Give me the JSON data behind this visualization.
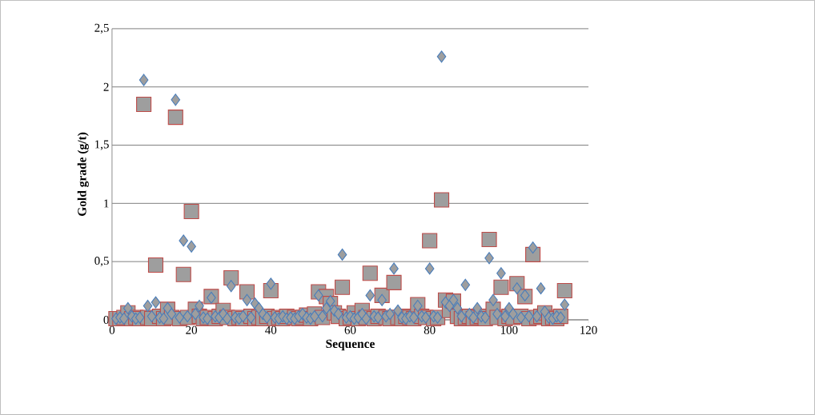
{
  "chart_data": {
    "type": "scatter",
    "xlabel": "Sequence",
    "ylabel": "Gold grade (g/t)",
    "x": [
      1,
      2,
      3,
      4,
      5,
      6,
      7,
      8,
      9,
      10,
      11,
      12,
      13,
      14,
      15,
      16,
      17,
      18,
      19,
      20,
      21,
      22,
      23,
      24,
      25,
      26,
      27,
      28,
      29,
      30,
      31,
      32,
      33,
      34,
      35,
      36,
      37,
      38,
      39,
      40,
      41,
      42,
      43,
      44,
      45,
      46,
      47,
      48,
      49,
      50,
      51,
      52,
      53,
      54,
      55,
      56,
      57,
      58,
      59,
      60,
      61,
      62,
      63,
      64,
      65,
      66,
      67,
      68,
      69,
      70,
      71,
      72,
      73,
      74,
      75,
      76,
      77,
      78,
      79,
      80,
      81,
      82,
      83,
      84,
      85,
      86,
      87,
      88,
      89,
      90,
      91,
      92,
      93,
      94,
      95,
      96,
      97,
      98,
      99,
      100,
      101,
      102,
      103,
      104,
      105,
      106,
      107,
      108,
      109,
      110,
      111,
      112,
      113,
      114
    ],
    "series": [
      {
        "color": "#4a7ebb",
        "marker": "diamond",
        "values": [
          0.01,
          0.02,
          0.01,
          0.1,
          0.03,
          0.01,
          0.02,
          2.06,
          0.12,
          0.03,
          0.15,
          0.02,
          0.01,
          0.1,
          0.05,
          1.89,
          0.02,
          0.68,
          0.03,
          0.63,
          0.05,
          0.12,
          0.02,
          0.01,
          0.19,
          0.03,
          0.02,
          0.05,
          0.01,
          0.29,
          0.02,
          0.01,
          0.03,
          0.17,
          0.02,
          0.14,
          0.1,
          0.05,
          0.02,
          0.31,
          0.02,
          0.01,
          0.03,
          0.01,
          0.02,
          0.01,
          0.03,
          0.05,
          0.02,
          0.01,
          0.03,
          0.21,
          0.03,
          0.1,
          0.16,
          0.08,
          0.05,
          0.56,
          0.02,
          0.03,
          0.01,
          0.02,
          0.05,
          0.01,
          0.21,
          0.03,
          0.02,
          0.17,
          0.03,
          0.05,
          0.44,
          0.08,
          0.02,
          0.01,
          0.03,
          0.02,
          0.12,
          0.03,
          0.02,
          0.44,
          0.03,
          0.02,
          2.26,
          0.15,
          0.12,
          0.17,
          0.1,
          0.03,
          0.3,
          0.05,
          0.02,
          0.1,
          0.03,
          0.02,
          0.53,
          0.17,
          0.05,
          0.4,
          0.03,
          0.1,
          0.05,
          0.27,
          0.02,
          0.21,
          0.03,
          0.62,
          0.03,
          0.27,
          0.07,
          0.02,
          0.01,
          0.03,
          0.02,
          0.13
        ]
      },
      {
        "color": "#be4b48",
        "marker": "square",
        "values": [
          0.01,
          0.01,
          0.02,
          0.06,
          0.01,
          0.02,
          0.01,
          1.85,
          0.02,
          0.01,
          0.47,
          0.03,
          0.01,
          0.09,
          0.02,
          1.74,
          0.01,
          0.39,
          0.02,
          0.93,
          0.09,
          0.03,
          0.01,
          0.02,
          0.2,
          0.01,
          0.03,
          0.08,
          0.02,
          0.36,
          0.01,
          0.02,
          0.01,
          0.24,
          0.03,
          0.01,
          0.02,
          0.01,
          0.03,
          0.25,
          0.01,
          0.02,
          0.01,
          0.03,
          null,
          0.02,
          0.01,
          0.02,
          0.04,
          0.01,
          0.05,
          0.24,
          0.02,
          0.2,
          0.14,
          0.06,
          0.03,
          0.28,
          0.01,
          0.02,
          0.06,
          0.01,
          0.08,
          0.02,
          0.4,
          0.01,
          0.03,
          0.21,
          0.02,
          0.01,
          0.32,
          0.02,
          0.01,
          0.03,
          0.02,
          0.01,
          0.13,
          0.03,
          0.02,
          0.68,
          0.01,
          0.02,
          1.03,
          0.17,
          0.08,
          0.16,
          0.03,
          0.01,
          0.02,
          0.03,
          0.01,
          0.02,
          0.03,
          0.01,
          0.69,
          0.09,
          0.02,
          0.28,
          0.01,
          0.03,
          0.02,
          0.31,
          0.03,
          0.2,
          0.01,
          0.56,
          0.02,
          0.03,
          0.06,
          0.01,
          0.02,
          0.01,
          0.03,
          0.25
        ]
      }
    ],
    "xlim": [
      0,
      120
    ],
    "xticks": [
      0,
      20,
      40,
      60,
      80,
      100,
      120
    ],
    "ylim": [
      0,
      2.5
    ],
    "yticks": [
      0,
      {
        "value": 0.5,
        "label": "0,5"
      },
      1,
      {
        "value": 1.5,
        "label": "1,5"
      },
      2,
      {
        "value": 2.5,
        "label": "2,5"
      }
    ],
    "grid": "y"
  }
}
